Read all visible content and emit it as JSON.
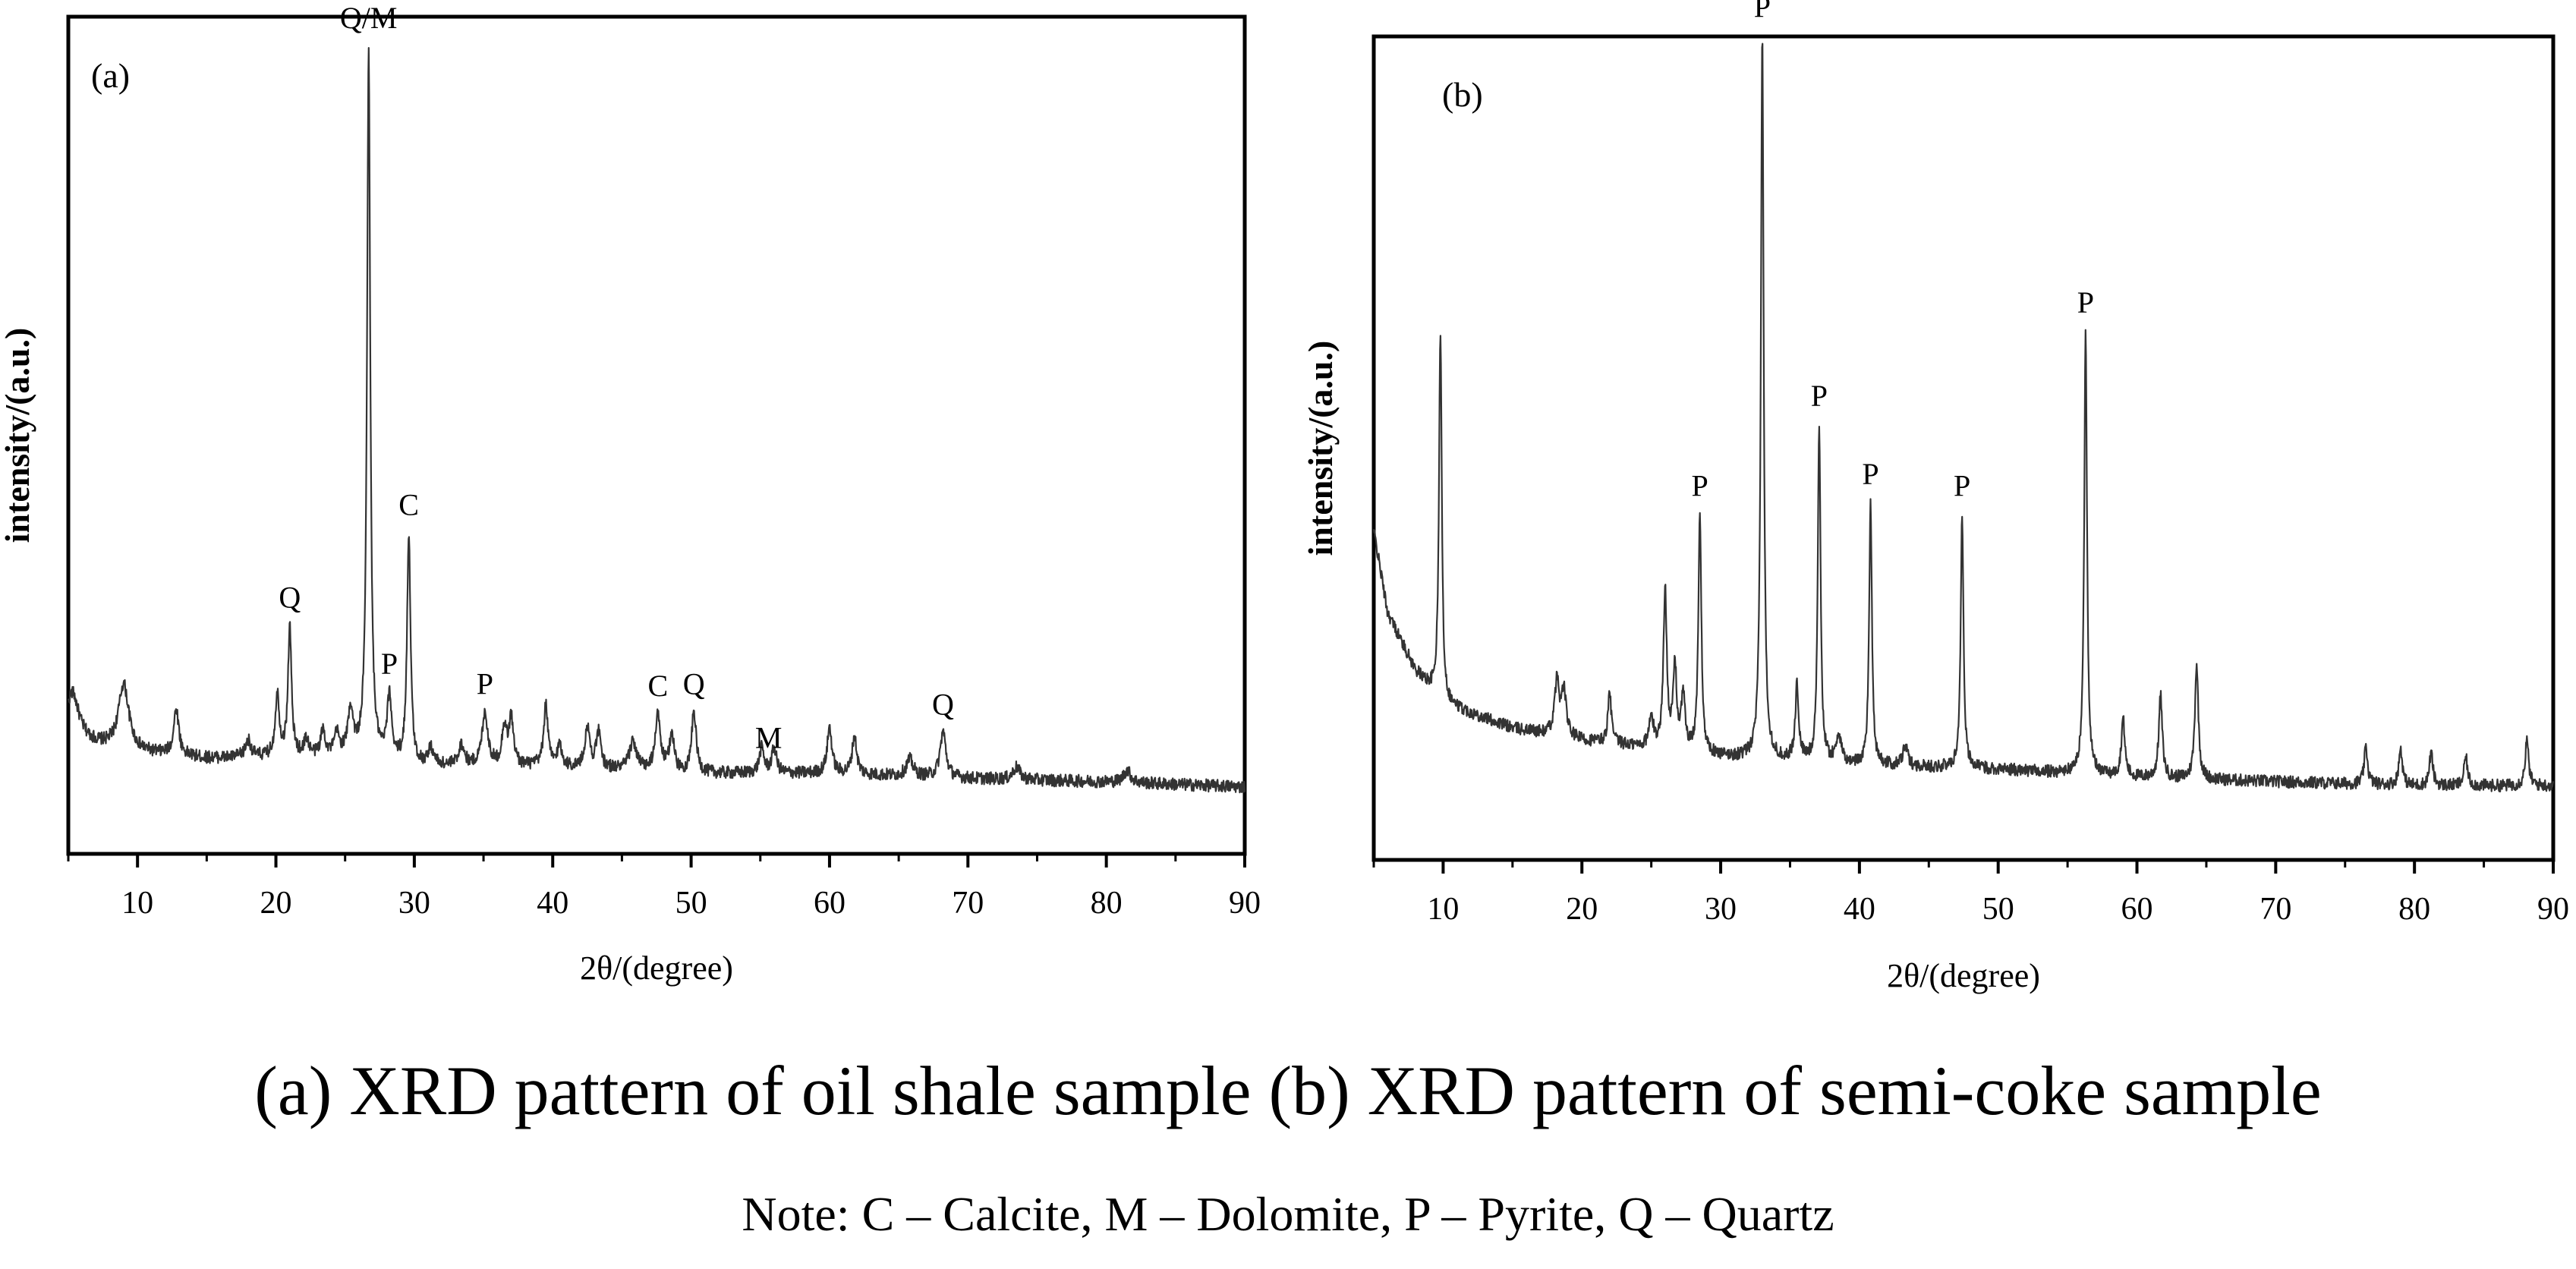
{
  "caption": "(a) XRD pattern of oil shale sample (b) XRD pattern of semi-coke sample",
  "note": "Note: C – Calcite, M – Dolomite, P – Pyrite, Q – Quartz",
  "chart_data": [
    {
      "type": "line",
      "panel_label": "(a)",
      "title": "",
      "xlabel": "2θ/(degree)",
      "ylabel": "intensity/(a.u.)",
      "xlim": [
        5,
        90
      ],
      "ylim": [
        0,
        100
      ],
      "xticks": [
        10,
        20,
        30,
        40,
        50,
        60,
        70,
        80,
        90
      ],
      "y_ticks_shown": false,
      "grid": false,
      "color": "#333333",
      "background": [
        [
          5,
          13.8
        ],
        [
          9,
          12.2
        ],
        [
          15,
          11.4
        ],
        [
          25,
          11.6
        ],
        [
          30,
          10.4
        ],
        [
          40,
          10.4
        ],
        [
          50,
          9.6
        ],
        [
          60,
          9.6
        ],
        [
          70,
          9.0
        ],
        [
          80,
          8.6
        ],
        [
          90,
          8.0
        ]
      ],
      "peaks": [
        {
          "x": 5.3,
          "h": 5.5,
          "w": 0.55
        },
        {
          "x": 9.0,
          "h": 8.0,
          "w": 0.45
        },
        {
          "x": 12.8,
          "h": 5.5,
          "w": 0.22
        },
        {
          "x": 18.0,
          "h": 2.0,
          "w": 0.25
        },
        {
          "x": 20.1,
          "h": 7.4,
          "w": 0.18
        },
        {
          "x": 21.0,
          "h": 15.4,
          "w": 0.15
        },
        {
          "x": 22.2,
          "h": 2.0,
          "w": 0.2
        },
        {
          "x": 23.4,
          "h": 3.0,
          "w": 0.2
        },
        {
          "x": 24.4,
          "h": 2.5,
          "w": 0.2
        },
        {
          "x": 25.4,
          "h": 5.5,
          "w": 0.22
        },
        {
          "x": 26.7,
          "h": 85.0,
          "w": 0.14
        },
        {
          "x": 28.2,
          "h": 7.5,
          "w": 0.2
        },
        {
          "x": 29.6,
          "h": 27.5,
          "w": 0.15
        },
        {
          "x": 31.2,
          "h": 2.0,
          "w": 0.25
        },
        {
          "x": 33.4,
          "h": 2.5,
          "w": 0.25
        },
        {
          "x": 35.1,
          "h": 6.4,
          "w": 0.25
        },
        {
          "x": 36.5,
          "h": 4.5,
          "w": 0.2
        },
        {
          "x": 37.0,
          "h": 5.5,
          "w": 0.2
        },
        {
          "x": 39.5,
          "h": 7.3,
          "w": 0.18
        },
        {
          "x": 40.5,
          "h": 2.5,
          "w": 0.2
        },
        {
          "x": 42.5,
          "h": 4.9,
          "w": 0.2
        },
        {
          "x": 43.3,
          "h": 4.2,
          "w": 0.2
        },
        {
          "x": 45.8,
          "h": 3.4,
          "w": 0.3
        },
        {
          "x": 47.6,
          "h": 6.7,
          "w": 0.22
        },
        {
          "x": 48.6,
          "h": 4.5,
          "w": 0.2
        },
        {
          "x": 50.2,
          "h": 7.3,
          "w": 0.2
        },
        {
          "x": 55.1,
          "h": 3.0,
          "w": 0.2
        },
        {
          "x": 56.0,
          "h": 3.0,
          "w": 0.2
        },
        {
          "x": 60.0,
          "h": 5.5,
          "w": 0.2
        },
        {
          "x": 61.8,
          "h": 4.5,
          "w": 0.2
        },
        {
          "x": 65.8,
          "h": 2.0,
          "w": 0.3
        },
        {
          "x": 68.2,
          "h": 5.5,
          "w": 0.25
        },
        {
          "x": 73.5,
          "h": 1.5,
          "w": 0.3
        },
        {
          "x": 81.5,
          "h": 1.5,
          "w": 0.3
        }
      ],
      "annotations": [
        {
          "text": "Q/M",
          "x": 26.7
        },
        {
          "text": "Q",
          "x": 21.0
        },
        {
          "text": "C",
          "x": 29.6
        },
        {
          "text": "P",
          "x": 28.2
        },
        {
          "text": "P",
          "x": 35.1
        },
        {
          "text": "C",
          "x": 47.6
        },
        {
          "text": "Q",
          "x": 50.2
        },
        {
          "text": "M",
          "x": 55.6
        },
        {
          "text": "Q",
          "x": 68.2
        }
      ]
    },
    {
      "type": "line",
      "panel_label": "(b)",
      "title": "",
      "xlabel": "2θ/(degree)",
      "ylabel": "intensity/(a.u.)",
      "xlim": [
        5,
        90
      ],
      "ylim": [
        0,
        100
      ],
      "xticks": [
        10,
        20,
        30,
        40,
        50,
        60,
        70,
        80,
        90
      ],
      "y_ticks_shown": false,
      "grid": false,
      "color": "#333333",
      "background": [
        [
          5,
          40.0
        ],
        [
          6,
          30.0
        ],
        [
          8,
          23.0
        ],
        [
          10,
          19.0
        ],
        [
          15,
          16.0
        ],
        [
          20,
          14.5
        ],
        [
          25,
          13.5
        ],
        [
          30,
          12.5
        ],
        [
          40,
          11.5
        ],
        [
          50,
          11.0
        ],
        [
          60,
          10.0
        ],
        [
          70,
          9.5
        ],
        [
          80,
          9.0
        ],
        [
          90,
          9.0
        ]
      ],
      "peaks": [
        {
          "x": 9.8,
          "h": 45.0,
          "w": 0.12
        },
        {
          "x": 18.2,
          "h": 6.5,
          "w": 0.2
        },
        {
          "x": 18.7,
          "h": 5.5,
          "w": 0.2
        },
        {
          "x": 22.0,
          "h": 6.0,
          "w": 0.15
        },
        {
          "x": 25.0,
          "h": 3.5,
          "w": 0.2
        },
        {
          "x": 26.0,
          "h": 19.0,
          "w": 0.15
        },
        {
          "x": 26.7,
          "h": 10.0,
          "w": 0.15
        },
        {
          "x": 27.3,
          "h": 7.0,
          "w": 0.15
        },
        {
          "x": 28.5,
          "h": 29.0,
          "w": 0.13
        },
        {
          "x": 33.0,
          "h": 88.0,
          "w": 0.12
        },
        {
          "x": 35.5,
          "h": 9.0,
          "w": 0.15
        },
        {
          "x": 37.1,
          "h": 41.0,
          "w": 0.12
        },
        {
          "x": 38.5,
          "h": 3.5,
          "w": 0.2
        },
        {
          "x": 40.8,
          "h": 32.0,
          "w": 0.12
        },
        {
          "x": 43.3,
          "h": 2.5,
          "w": 0.2
        },
        {
          "x": 47.4,
          "h": 31.0,
          "w": 0.12
        },
        {
          "x": 56.3,
          "h": 54.0,
          "w": 0.12
        },
        {
          "x": 59.0,
          "h": 7.0,
          "w": 0.15
        },
        {
          "x": 61.7,
          "h": 10.0,
          "w": 0.15
        },
        {
          "x": 64.3,
          "h": 14.0,
          "w": 0.15
        },
        {
          "x": 76.5,
          "h": 4.5,
          "w": 0.15
        },
        {
          "x": 79.0,
          "h": 4.5,
          "w": 0.15
        },
        {
          "x": 81.2,
          "h": 4.0,
          "w": 0.15
        },
        {
          "x": 83.7,
          "h": 3.5,
          "w": 0.15
        },
        {
          "x": 88.1,
          "h": 5.5,
          "w": 0.15
        }
      ],
      "annotations": [
        {
          "text": "P",
          "x": 28.5
        },
        {
          "text": "P",
          "x": 33.0
        },
        {
          "text": "P",
          "x": 37.1
        },
        {
          "text": "P",
          "x": 40.8
        },
        {
          "text": "P",
          "x": 47.4
        },
        {
          "text": "P",
          "x": 56.3
        }
      ]
    }
  ]
}
